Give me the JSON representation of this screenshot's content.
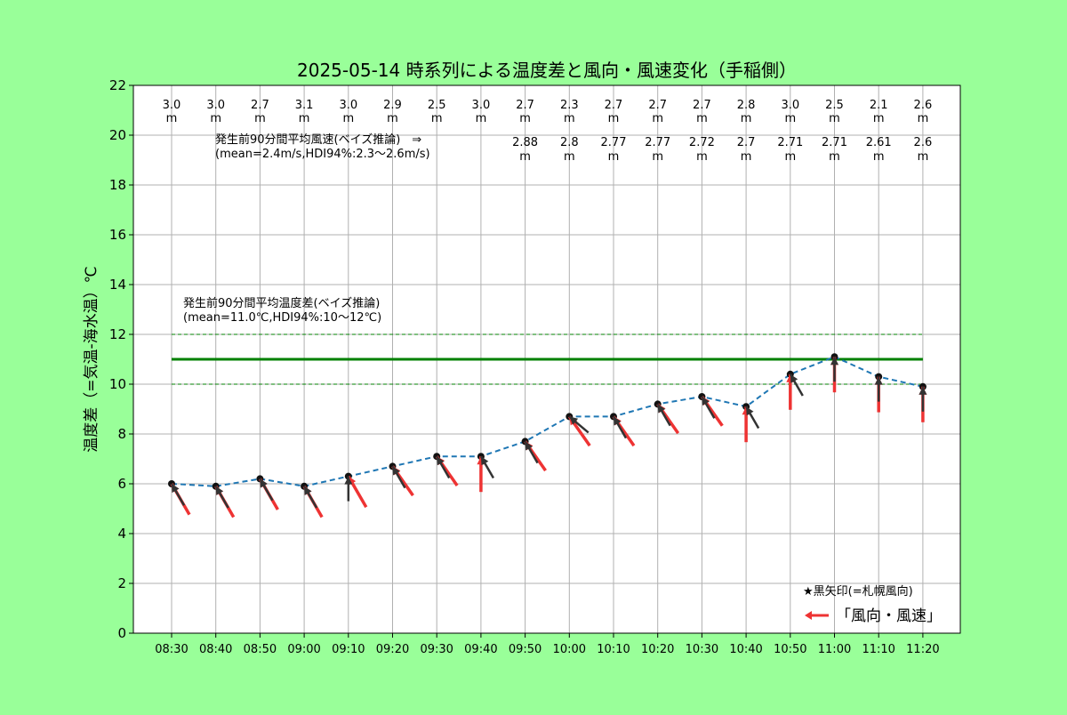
{
  "chart_data": {
    "type": "line",
    "title": "2025-05-14 時系列による温度差と風向・風速変化（手稲側）",
    "xlabel": "",
    "ylabel": "温度差（=気温-海水温）℃",
    "ylim": [
      0,
      22
    ],
    "y_ticks": [
      0,
      2,
      4,
      6,
      8,
      10,
      12,
      14,
      16,
      18,
      20,
      22
    ],
    "grid": true,
    "categories": [
      "08:30",
      "08:40",
      "08:50",
      "09:00",
      "09:10",
      "09:20",
      "09:30",
      "09:40",
      "09:50",
      "10:00",
      "10:10",
      "10:20",
      "10:30",
      "10:40",
      "10:50",
      "11:00",
      "11:10",
      "11:20"
    ],
    "series": [
      {
        "values": [
          6.0,
          5.9,
          6.2,
          5.9,
          6.3,
          6.7,
          7.1,
          7.1,
          7.7,
          8.7,
          8.7,
          9.2,
          9.5,
          9.1,
          10.4,
          11.1,
          10.3,
          9.9
        ],
        "color": "#1f77b4",
        "style": "dashed"
      }
    ],
    "wind_speed_labels": [
      "3.0",
      "3.0",
      "2.7",
      "3.1",
      "3.0",
      "2.9",
      "2.5",
      "3.0",
      "2.7",
      "2.3",
      "2.7",
      "2.7",
      "2.7",
      "2.8",
      "3.0",
      "2.5",
      "2.1",
      "2.6"
    ],
    "wind_speed_unit": "m",
    "avg_speed_labels": [
      "2.88",
      "2.8",
      "2.77",
      "2.77",
      "2.72",
      "2.7",
      "2.71",
      "2.71",
      "2.61",
      "2.6"
    ],
    "avg_speed_start_index": 8,
    "speed_annotation": {
      "line1": "発生前90分間平均風速(ベイズ推論)　⇒",
      "line2": "(mean=2.4m/s,HDI94%:2.3〜2.6m/s)"
    },
    "temp_annotation": {
      "line1": "発生前90分間平均温度差(ベイズ推論)",
      "line2": "(mean=11.0℃,HDI94%:10〜12℃)"
    },
    "mean_line": {
      "value": 11.0,
      "color": "#008000"
    },
    "hdi_band": {
      "low": 10.0,
      "high": 12.0,
      "color": "#008000"
    },
    "wind_arrows_red_direction_deg": [
      300,
      300,
      300,
      300,
      300,
      305,
      305,
      270,
      305,
      305,
      305,
      305,
      305,
      270,
      270,
      270,
      270,
      270
    ],
    "wind_arrows_black_direction_deg": [
      300,
      300,
      300,
      300,
      270,
      300,
      300,
      300,
      300,
      320,
      300,
      300,
      300,
      300,
      300,
      270,
      270,
      270
    ],
    "legend": {
      "position": "lower-right",
      "black_note": "★黒矢印(=札幌風向)",
      "red_label": "「風向・風速」"
    },
    "colors": {
      "background": "#99ff99",
      "plot_background": "#ffffff",
      "red_arrow": "#ee3333",
      "black_arrow": "#333333",
      "grid": "#b0b0b0"
    }
  }
}
